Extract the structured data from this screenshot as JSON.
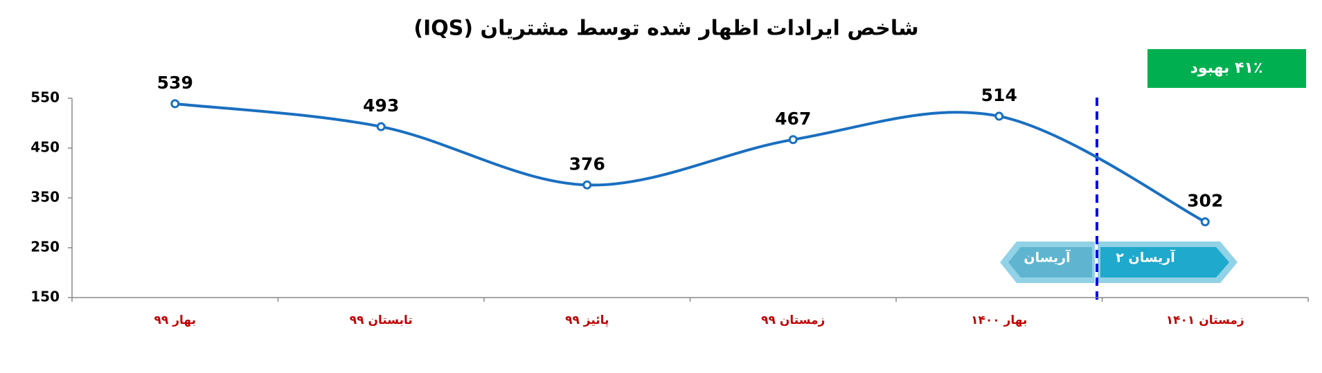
{
  "chart_data": {
    "type": "line",
    "title": "شاخص ایرادات اظهار شده توسط مشتریان (IQS)",
    "categories": [
      "بهار ۹۹",
      "تابستان ۹۹",
      "پائیز ۹۹",
      "زمستان ۹۹",
      "بهار ۱۴۰۰",
      "زمستان ۱۴۰۱"
    ],
    "series": [
      {
        "name": "IQS",
        "color": "#1a6fc0",
        "values": [
          539,
          493,
          376,
          467,
          514,
          302
        ]
      }
    ],
    "ylim": [
      150,
      550
    ],
    "yticks": [
      150,
      250,
      350,
      450,
      550
    ],
    "grid": false,
    "annotations": {
      "improvement": "۴۱٪ بهبود",
      "before": "آریسان",
      "after": "آریسان ۲"
    }
  }
}
